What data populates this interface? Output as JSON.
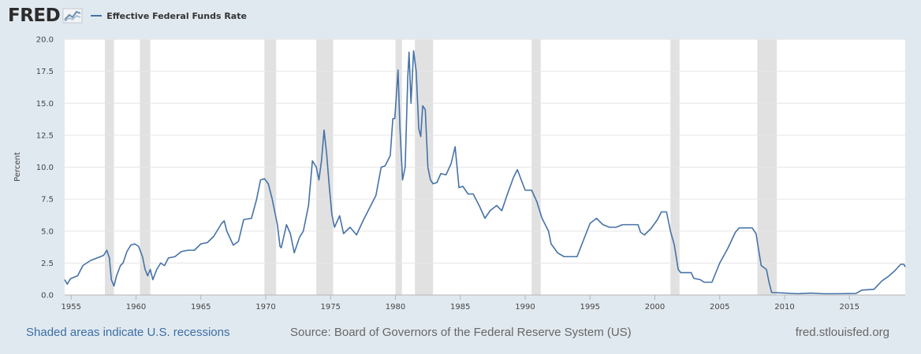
{
  "header": {
    "logo_text": "FRED",
    "logo_icon": "trend-line-icon",
    "legend_label": "Effective Federal Funds Rate",
    "series_color": "#4572a7"
  },
  "footer": {
    "recessions_note": "Shaded areas indicate U.S. recessions",
    "source": "Source: Board of Governors of the Federal Reserve System (US)",
    "site": "fred.stlouisfed.org"
  },
  "chart_data": {
    "type": "line",
    "title": "",
    "xlabel": "",
    "ylabel": "Percent",
    "xlim": [
      1954.5,
      2019.3
    ],
    "ylim": [
      0,
      20
    ],
    "grid": true,
    "legend_position": "top-left",
    "y_ticks": [
      "0.0",
      "2.5",
      "5.0",
      "7.5",
      "10.0",
      "12.5",
      "15.0",
      "17.5",
      "20.0"
    ],
    "x_ticks": [
      "1955",
      "1960",
      "1965",
      "1970",
      "1975",
      "1980",
      "1985",
      "1990",
      "1995",
      "2000",
      "2005",
      "2010",
      "2015"
    ],
    "recessions": [
      [
        1957.6,
        1958.3
      ],
      [
        1960.3,
        1961.1
      ],
      [
        1969.9,
        1970.8
      ],
      [
        1973.9,
        1975.2
      ],
      [
        1980.0,
        1980.5
      ],
      [
        1981.5,
        1982.9
      ],
      [
        1990.5,
        1991.2
      ],
      [
        2001.2,
        2001.9
      ],
      [
        2007.9,
        2009.4
      ]
    ],
    "series": [
      {
        "name": "Effective Federal Funds Rate",
        "color": "#4572a7",
        "points": [
          [
            1954.5,
            1.2
          ],
          [
            1954.7,
            0.85
          ],
          [
            1954.9,
            1.2
          ],
          [
            1955.0,
            1.3
          ],
          [
            1955.5,
            1.5
          ],
          [
            1955.9,
            2.3
          ],
          [
            1956.5,
            2.7
          ],
          [
            1957.0,
            2.9
          ],
          [
            1957.5,
            3.1
          ],
          [
            1957.75,
            3.5
          ],
          [
            1957.95,
            2.9
          ],
          [
            1958.1,
            1.2
          ],
          [
            1958.3,
            0.7
          ],
          [
            1958.5,
            1.5
          ],
          [
            1958.8,
            2.3
          ],
          [
            1959.0,
            2.5
          ],
          [
            1959.3,
            3.4
          ],
          [
            1959.6,
            3.9
          ],
          [
            1959.9,
            4.0
          ],
          [
            1960.2,
            3.8
          ],
          [
            1960.5,
            3.0
          ],
          [
            1960.7,
            2.0
          ],
          [
            1960.9,
            1.5
          ],
          [
            1961.1,
            2.0
          ],
          [
            1961.3,
            1.2
          ],
          [
            1961.6,
            2.0
          ],
          [
            1961.9,
            2.5
          ],
          [
            1962.2,
            2.3
          ],
          [
            1962.5,
            2.9
          ],
          [
            1963.0,
            3.0
          ],
          [
            1963.5,
            3.4
          ],
          [
            1964.0,
            3.5
          ],
          [
            1964.5,
            3.5
          ],
          [
            1965.0,
            4.0
          ],
          [
            1965.5,
            4.1
          ],
          [
            1966.0,
            4.6
          ],
          [
            1966.6,
            5.6
          ],
          [
            1966.8,
            5.8
          ],
          [
            1967.0,
            5.0
          ],
          [
            1967.5,
            3.9
          ],
          [
            1967.9,
            4.2
          ],
          [
            1968.3,
            5.9
          ],
          [
            1968.9,
            6.0
          ],
          [
            1969.3,
            7.5
          ],
          [
            1969.6,
            9.0
          ],
          [
            1969.9,
            9.1
          ],
          [
            1970.2,
            8.7
          ],
          [
            1970.5,
            7.5
          ],
          [
            1970.9,
            5.5
          ],
          [
            1971.1,
            3.8
          ],
          [
            1971.2,
            3.7
          ],
          [
            1971.6,
            5.5
          ],
          [
            1971.9,
            4.8
          ],
          [
            1972.2,
            3.3
          ],
          [
            1972.6,
            4.5
          ],
          [
            1972.9,
            5.0
          ],
          [
            1973.3,
            7.0
          ],
          [
            1973.6,
            10.5
          ],
          [
            1973.9,
            10.0
          ],
          [
            1974.1,
            9.0
          ],
          [
            1974.3,
            10.5
          ],
          [
            1974.5,
            12.9
          ],
          [
            1974.7,
            11.0
          ],
          [
            1974.9,
            8.5
          ],
          [
            1975.1,
            6.3
          ],
          [
            1975.3,
            5.3
          ],
          [
            1975.7,
            6.2
          ],
          [
            1976.0,
            4.8
          ],
          [
            1976.5,
            5.3
          ],
          [
            1977.0,
            4.7
          ],
          [
            1977.5,
            5.8
          ],
          [
            1977.9,
            6.6
          ],
          [
            1978.5,
            7.8
          ],
          [
            1978.9,
            10.0
          ],
          [
            1979.2,
            10.1
          ],
          [
            1979.6,
            10.9
          ],
          [
            1979.8,
            13.8
          ],
          [
            1979.95,
            13.8
          ],
          [
            1980.2,
            17.6
          ],
          [
            1980.35,
            13.0
          ],
          [
            1980.55,
            9.0
          ],
          [
            1980.75,
            10.0
          ],
          [
            1980.95,
            17.0
          ],
          [
            1981.05,
            19.0
          ],
          [
            1981.2,
            15.0
          ],
          [
            1981.4,
            19.1
          ],
          [
            1981.6,
            17.5
          ],
          [
            1981.8,
            13.0
          ],
          [
            1981.95,
            12.4
          ],
          [
            1982.1,
            14.8
          ],
          [
            1982.3,
            14.5
          ],
          [
            1982.5,
            10.0
          ],
          [
            1982.7,
            9.0
          ],
          [
            1982.9,
            8.7
          ],
          [
            1983.2,
            8.8
          ],
          [
            1983.5,
            9.5
          ],
          [
            1983.9,
            9.4
          ],
          [
            1984.3,
            10.3
          ],
          [
            1984.6,
            11.6
          ],
          [
            1984.9,
            8.4
          ],
          [
            1985.2,
            8.5
          ],
          [
            1985.6,
            7.9
          ],
          [
            1986.0,
            7.9
          ],
          [
            1986.5,
            6.9
          ],
          [
            1986.9,
            6.0
          ],
          [
            1987.3,
            6.6
          ],
          [
            1987.8,
            7.0
          ],
          [
            1988.2,
            6.6
          ],
          [
            1988.6,
            7.8
          ],
          [
            1989.1,
            9.2
          ],
          [
            1989.4,
            9.8
          ],
          [
            1989.7,
            9.0
          ],
          [
            1990.0,
            8.2
          ],
          [
            1990.5,
            8.2
          ],
          [
            1990.9,
            7.3
          ],
          [
            1991.3,
            6.0
          ],
          [
            1991.8,
            5.0
          ],
          [
            1992.0,
            4.0
          ],
          [
            1992.5,
            3.3
          ],
          [
            1993.0,
            3.0
          ],
          [
            1993.5,
            3.0
          ],
          [
            1994.0,
            3.0
          ],
          [
            1994.5,
            4.3
          ],
          [
            1995.0,
            5.6
          ],
          [
            1995.5,
            6.0
          ],
          [
            1996.0,
            5.5
          ],
          [
            1996.5,
            5.3
          ],
          [
            1997.0,
            5.3
          ],
          [
            1997.5,
            5.5
          ],
          [
            1998.0,
            5.5
          ],
          [
            1998.7,
            5.5
          ],
          [
            1998.9,
            4.9
          ],
          [
            1999.2,
            4.7
          ],
          [
            1999.7,
            5.2
          ],
          [
            2000.2,
            5.9
          ],
          [
            2000.5,
            6.5
          ],
          [
            2000.9,
            6.5
          ],
          [
            2001.2,
            5.0
          ],
          [
            2001.5,
            3.9
          ],
          [
            2001.8,
            2.0
          ],
          [
            2002.0,
            1.75
          ],
          [
            2002.8,
            1.75
          ],
          [
            2003.0,
            1.3
          ],
          [
            2003.5,
            1.2
          ],
          [
            2003.8,
            1.0
          ],
          [
            2004.4,
            1.0
          ],
          [
            2005.0,
            2.5
          ],
          [
            2005.6,
            3.6
          ],
          [
            2006.2,
            4.9
          ],
          [
            2006.5,
            5.25
          ],
          [
            2007.5,
            5.25
          ],
          [
            2007.8,
            4.8
          ],
          [
            2008.0,
            3.5
          ],
          [
            2008.2,
            2.3
          ],
          [
            2008.6,
            2.0
          ],
          [
            2008.8,
            1.0
          ],
          [
            2009.0,
            0.2
          ],
          [
            2010.0,
            0.15
          ],
          [
            2011.0,
            0.1
          ],
          [
            2012.0,
            0.15
          ],
          [
            2013.0,
            0.1
          ],
          [
            2014.0,
            0.1
          ],
          [
            2015.5,
            0.12
          ],
          [
            2015.95,
            0.38
          ],
          [
            2016.9,
            0.45
          ],
          [
            2017.5,
            1.1
          ],
          [
            2018.0,
            1.45
          ],
          [
            2018.5,
            1.9
          ],
          [
            2018.95,
            2.4
          ],
          [
            2019.2,
            2.4
          ],
          [
            2019.3,
            2.2
          ]
        ]
      }
    ]
  }
}
